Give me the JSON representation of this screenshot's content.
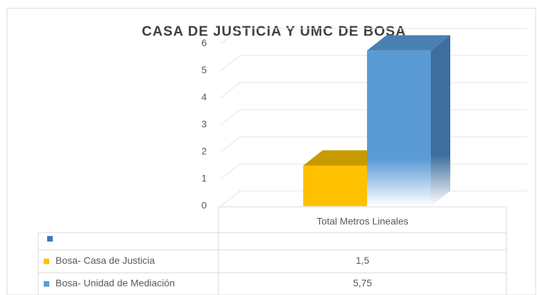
{
  "chart_data": {
    "type": "bar3d",
    "title": "CASA DE JUSTICIA Y UMC DE BOSA",
    "categories": [
      "Total Metros Lineales"
    ],
    "series": [
      {
        "name": "Bosa- Casa de Justicia",
        "color": "#ffc000",
        "values": [
          1.5
        ],
        "value_labels": [
          "1,5"
        ]
      },
      {
        "name": "Bosa- Unidad de Mediación",
        "color": "#5b9bd5",
        "values": [
          5.75
        ],
        "value_labels": [
          "5,75"
        ]
      }
    ],
    "ylim": [
      0,
      6
    ],
    "yticks": [
      0,
      1,
      2,
      3,
      4,
      5,
      6
    ],
    "grid": true,
    "data_table": true
  }
}
